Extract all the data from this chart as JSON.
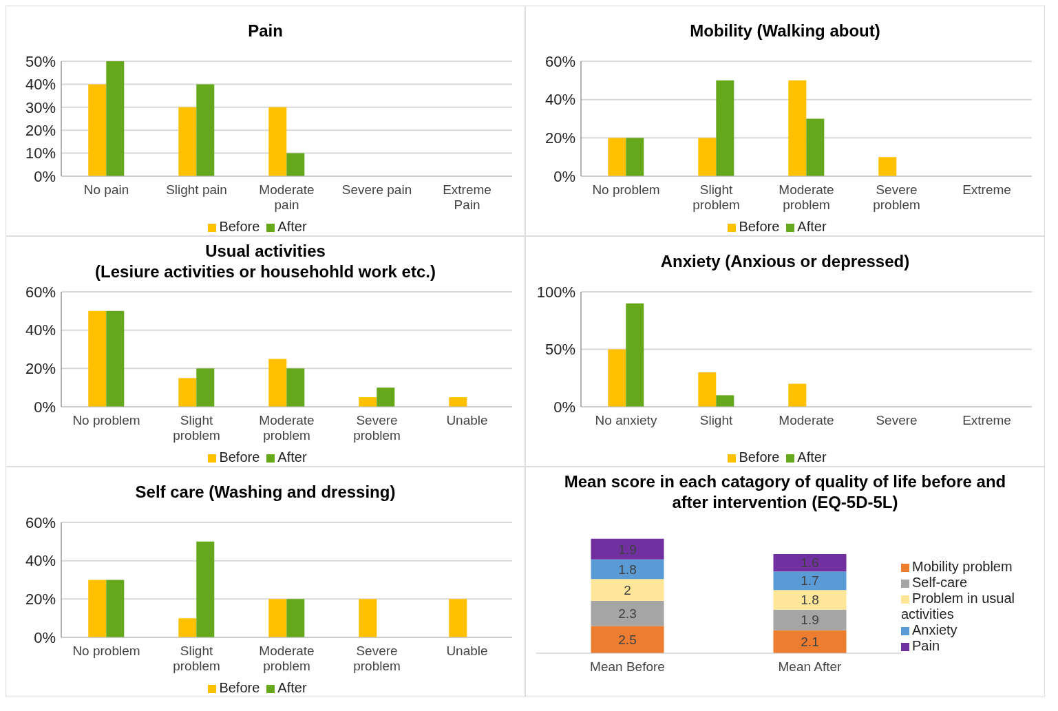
{
  "chart_data": [
    {
      "type": "bar",
      "title": "Pain",
      "categories": [
        "No pain",
        "Slight pain",
        "Moderate pain",
        "Severe pain",
        "Extreme Pain"
      ],
      "series": [
        {
          "name": "Before",
          "color": "#ffc000",
          "values": [
            40,
            30,
            30,
            0,
            0
          ]
        },
        {
          "name": "After",
          "color": "#66a81c",
          "values": [
            50,
            40,
            10,
            0,
            0
          ]
        }
      ],
      "ylim": [
        0,
        50
      ],
      "yticks": [
        {
          "value": 0,
          "label": "0%"
        },
        {
          "value": 10,
          "label": "10%"
        },
        {
          "value": 20,
          "label": "20%"
        },
        {
          "value": 30,
          "label": "30%"
        },
        {
          "value": 40,
          "label": "40%"
        },
        {
          "value": 50,
          "label": "50%"
        }
      ],
      "grid": "y",
      "legend": "bottom"
    },
    {
      "type": "bar",
      "title": "Mobility (Walking about)",
      "categories": [
        "No problem",
        "Slight problem",
        "Moderate problem",
        "Severe problem",
        "Extreme"
      ],
      "series": [
        {
          "name": "Before",
          "color": "#ffc000",
          "values": [
            20,
            20,
            50,
            10,
            0
          ]
        },
        {
          "name": "After",
          "color": "#66a81c",
          "values": [
            20,
            50,
            30,
            0,
            0
          ]
        }
      ],
      "ylim": [
        0,
        60
      ],
      "yticks": [
        {
          "value": 0,
          "label": "0%"
        },
        {
          "value": 20,
          "label": "20%"
        },
        {
          "value": 40,
          "label": "40%"
        },
        {
          "value": 60,
          "label": "60%"
        }
      ],
      "grid": "y",
      "legend": "bottom"
    },
    {
      "type": "bar",
      "title": "Usual activities",
      "subtitle": "(Lesiure activities or househohld work etc.)",
      "categories": [
        "No problem",
        "Slight problem",
        "Moderate problem",
        "Severe problem",
        "Unable"
      ],
      "series": [
        {
          "name": "Before",
          "color": "#ffc000",
          "values": [
            50,
            15,
            25,
            5,
            5
          ]
        },
        {
          "name": "After",
          "color": "#66a81c",
          "values": [
            50,
            20,
            20,
            10,
            0
          ]
        }
      ],
      "ylim": [
        0,
        60
      ],
      "yticks": [
        {
          "value": 0,
          "label": "0%"
        },
        {
          "value": 20,
          "label": "20%"
        },
        {
          "value": 40,
          "label": "40%"
        },
        {
          "value": 60,
          "label": "60%"
        }
      ],
      "grid": "y",
      "legend": "bottom"
    },
    {
      "type": "bar",
      "title": "Anxiety (Anxious or depressed)",
      "categories": [
        "No anxiety",
        "Slight",
        "Moderate",
        "Severe",
        "Extreme"
      ],
      "series": [
        {
          "name": "Before",
          "color": "#ffc000",
          "values": [
            50,
            30,
            20,
            0,
            0
          ]
        },
        {
          "name": "After",
          "color": "#66a81c",
          "values": [
            90,
            10,
            0,
            0,
            0
          ]
        }
      ],
      "ylim": [
        0,
        100
      ],
      "yticks": [
        {
          "value": 0,
          "label": "0%"
        },
        {
          "value": 50,
          "label": "50%"
        },
        {
          "value": 100,
          "label": "100%"
        }
      ],
      "grid": "y",
      "legend": "bottom"
    },
    {
      "type": "bar",
      "title": "Self care (Washing and dressing)",
      "categories": [
        "No problem",
        "Slight problem",
        "Moderate problem",
        "Severe problem",
        "Unable"
      ],
      "series": [
        {
          "name": "Before",
          "color": "#ffc000",
          "values": [
            30,
            10,
            20,
            20,
            20
          ]
        },
        {
          "name": "After",
          "color": "#66a81c",
          "values": [
            30,
            50,
            20,
            0,
            0
          ]
        }
      ],
      "ylim": [
        0,
        60
      ],
      "yticks": [
        {
          "value": 0,
          "label": "0%"
        },
        {
          "value": 20,
          "label": "20%"
        },
        {
          "value": 40,
          "label": "40%"
        },
        {
          "value": 60,
          "label": "60%"
        }
      ],
      "grid": "y",
      "legend": "bottom"
    },
    {
      "type": "bar",
      "title": "Mean score in each catagory of quality of life before and after intervention (EQ-5D-5L)",
      "categories": [
        "Mean Before",
        "Mean After"
      ],
      "stacked": true,
      "data_labels": true,
      "series": [
        {
          "name": "Mobility problem",
          "color": "#ed7d31",
          "values": [
            2.5,
            2.1
          ]
        },
        {
          "name": "Self-care",
          "color": "#a5a5a5",
          "values": [
            2.3,
            1.9
          ]
        },
        {
          "name": "Problem in usual activities",
          "color": "#ffe699",
          "values": [
            2,
            1.8
          ]
        },
        {
          "name": "Anxiety",
          "color": "#5b9bd5",
          "values": [
            1.8,
            1.7
          ]
        },
        {
          "name": "Pain",
          "color": "#7030a0",
          "values": [
            1.9,
            1.6
          ]
        }
      ],
      "tick_labels": "x",
      "legend": "right"
    }
  ]
}
